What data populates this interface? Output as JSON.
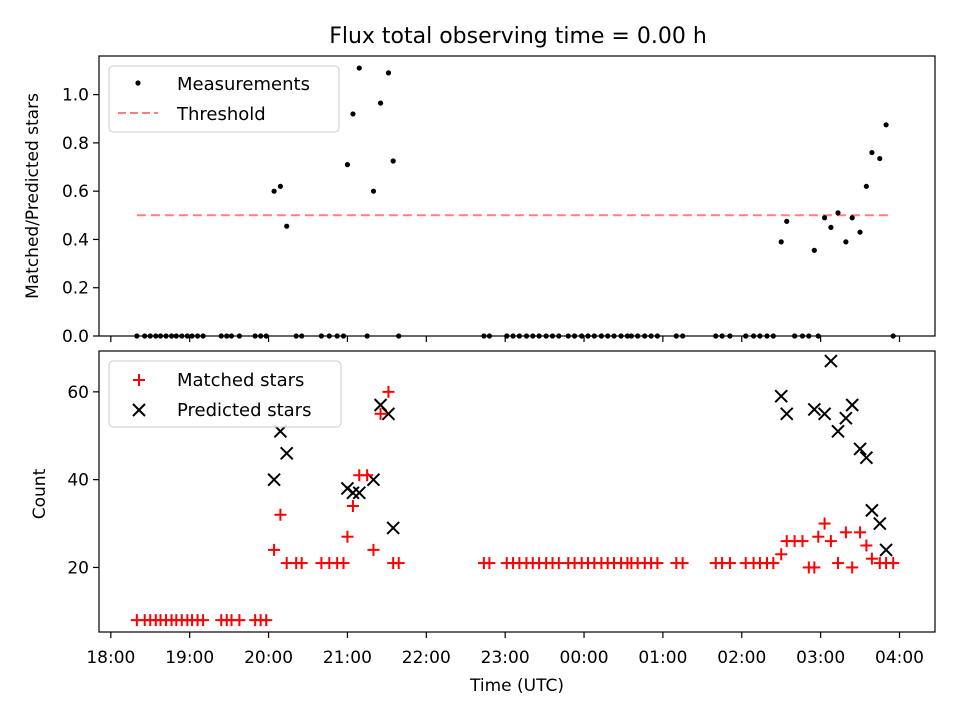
{
  "colors": {
    "measurement": "#000000",
    "threshold": "#ff7f7f",
    "matched": "#ff0000",
    "predicted": "#000000"
  },
  "chart_data": [
    {
      "type": "scatter",
      "title": "Flux total observing time = 0.00 h",
      "xlabel": "",
      "ylabel": "Matched/Predicted stars",
      "xlim": [
        17.85,
        28.45
      ],
      "ylim": [
        0.0,
        1.16
      ],
      "yticks": [
        0.0,
        0.2,
        0.4,
        0.6,
        0.8,
        1.0
      ],
      "ytick_labels": [
        "0.0",
        "0.2",
        "0.4",
        "0.6",
        "0.8",
        "1.0"
      ],
      "xticks": [
        18,
        19,
        20,
        21,
        22,
        23,
        24,
        25,
        26,
        27,
        28
      ],
      "legend": {
        "position": "top-left",
        "entries": [
          "Measurements",
          "Threshold"
        ]
      },
      "threshold": {
        "name": "Threshold",
        "y": 0.5,
        "x_range": [
          18.33,
          27.9
        ]
      },
      "series": [
        {
          "name": "Measurements",
          "marker": "dot",
          "x": [
            18.33,
            18.43,
            18.5,
            18.57,
            18.63,
            18.7,
            18.77,
            18.83,
            18.9,
            18.97,
            19.03,
            19.1,
            19.17,
            19.4,
            19.47,
            19.53,
            19.63,
            19.83,
            19.9,
            19.97,
            20.07,
            20.15,
            20.23,
            20.35,
            20.42,
            20.67,
            20.77,
            20.87,
            20.95,
            21.0,
            21.07,
            21.15,
            21.25,
            21.33,
            21.42,
            21.52,
            21.58,
            21.65,
            22.73,
            22.8,
            23.02,
            23.1,
            23.18,
            23.27,
            23.35,
            23.43,
            23.52,
            23.6,
            23.68,
            23.8,
            23.88,
            23.97,
            24.05,
            24.13,
            24.22,
            24.3,
            24.38,
            24.47,
            24.55,
            24.6,
            24.68,
            24.77,
            24.85,
            24.93,
            25.17,
            25.25,
            25.67,
            25.75,
            25.85,
            26.05,
            26.15,
            26.23,
            26.32,
            26.4,
            26.5,
            26.57,
            26.67,
            26.77,
            26.85,
            26.92,
            26.97,
            27.05,
            27.13,
            27.22,
            27.32,
            27.4,
            27.5,
            27.58,
            27.65,
            27.75,
            27.83,
            27.92
          ],
          "y": [
            0.0,
            0.0,
            0.0,
            0.0,
            0.0,
            0.0,
            0.0,
            0.0,
            0.0,
            0.0,
            0.0,
            0.0,
            0.0,
            0.0,
            0.0,
            0.0,
            0.0,
            0.0,
            0.0,
            0.0,
            0.6,
            0.62,
            0.455,
            0.0,
            0.0,
            0.0,
            0.0,
            0.0,
            0.0,
            0.71,
            0.92,
            1.11,
            0.0,
            0.6,
            0.965,
            1.09,
            0.725,
            0.0,
            0.0,
            0.0,
            0.0,
            0.0,
            0.0,
            0.0,
            0.0,
            0.0,
            0.0,
            0.0,
            0.0,
            0.0,
            0.0,
            0.0,
            0.0,
            0.0,
            0.0,
            0.0,
            0.0,
            0.0,
            0.0,
            0.0,
            0.0,
            0.0,
            0.0,
            0.0,
            0.0,
            0.0,
            0.0,
            0.0,
            0.0,
            0.0,
            0.0,
            0.0,
            0.0,
            0.0,
            0.39,
            0.475,
            0.0,
            0.0,
            0.0,
            0.355,
            0.0,
            0.49,
            0.45,
            0.51,
            0.39,
            0.49,
            0.43,
            0.62,
            0.76,
            0.735,
            0.875,
            0.0
          ]
        }
      ]
    },
    {
      "type": "scatter",
      "title": "",
      "xlabel": "Time (UTC)",
      "ylabel": "Count",
      "xlim": [
        17.85,
        28.45
      ],
      "ylim": [
        5.3,
        69.3
      ],
      "yticks": [
        20,
        40,
        60
      ],
      "ytick_labels": [
        "20",
        "40",
        "60"
      ],
      "xticks": [
        18,
        19,
        20,
        21,
        22,
        23,
        24,
        25,
        26,
        27,
        28
      ],
      "xtick_labels": [
        "18:00",
        "19:00",
        "20:00",
        "21:00",
        "22:00",
        "23:00",
        "00:00",
        "01:00",
        "02:00",
        "03:00",
        "04:00"
      ],
      "legend": {
        "position": "top-left",
        "entries": [
          "Matched stars",
          "Predicted stars"
        ]
      },
      "series": [
        {
          "name": "Matched stars",
          "marker": "plus",
          "x": [
            18.33,
            18.43,
            18.5,
            18.57,
            18.63,
            18.7,
            18.77,
            18.83,
            18.9,
            18.97,
            19.03,
            19.1,
            19.17,
            19.4,
            19.47,
            19.53,
            19.63,
            19.83,
            19.9,
            19.97,
            20.07,
            20.15,
            20.23,
            20.35,
            20.42,
            20.67,
            20.77,
            20.87,
            20.95,
            21.0,
            21.07,
            21.15,
            21.25,
            21.33,
            21.42,
            21.52,
            21.58,
            21.65,
            22.73,
            22.8,
            23.02,
            23.1,
            23.18,
            23.27,
            23.35,
            23.43,
            23.52,
            23.6,
            23.68,
            23.8,
            23.88,
            23.97,
            24.05,
            24.13,
            24.22,
            24.3,
            24.38,
            24.47,
            24.55,
            24.6,
            24.68,
            24.77,
            24.85,
            24.93,
            25.17,
            25.25,
            25.67,
            25.75,
            25.85,
            26.05,
            26.15,
            26.23,
            26.32,
            26.4,
            26.5,
            26.57,
            26.67,
            26.77,
            26.85,
            26.92,
            26.97,
            27.05,
            27.13,
            27.22,
            27.32,
            27.4,
            27.5,
            27.58,
            27.65,
            27.75,
            27.83,
            27.92
          ],
          "y": [
            8,
            8,
            8,
            8,
            8,
            8,
            8,
            8,
            8,
            8,
            8,
            8,
            8,
            8,
            8,
            8,
            8,
            8,
            8,
            8,
            24,
            32,
            21,
            21,
            21,
            21,
            21,
            21,
            21,
            27,
            34,
            41,
            41,
            24,
            55,
            60,
            21,
            21,
            21,
            21,
            21,
            21,
            21,
            21,
            21,
            21,
            21,
            21,
            21,
            21,
            21,
            21,
            21,
            21,
            21,
            21,
            21,
            21,
            21,
            21,
            21,
            21,
            21,
            21,
            21,
            21,
            21,
            21,
            21,
            21,
            21,
            21,
            21,
            21,
            23,
            26,
            26,
            26,
            20,
            20,
            27,
            30,
            26,
            21,
            28,
            20,
            28,
            25,
            22,
            21,
            21,
            21
          ]
        },
        {
          "name": "Predicted stars",
          "marker": "x",
          "x": [
            20.07,
            20.15,
            20.23,
            21.0,
            21.07,
            21.15,
            21.33,
            21.42,
            21.52,
            21.58,
            26.5,
            26.57,
            26.92,
            27.05,
            27.13,
            27.22,
            27.32,
            27.4,
            27.5,
            27.58,
            27.65,
            27.75,
            27.83
          ],
          "y": [
            40,
            51,
            46,
            38,
            37,
            37,
            40,
            57,
            55,
            29,
            59,
            55,
            56,
            55,
            67,
            51,
            54,
            57,
            47,
            45,
            33,
            30,
            24
          ]
        }
      ]
    }
  ]
}
